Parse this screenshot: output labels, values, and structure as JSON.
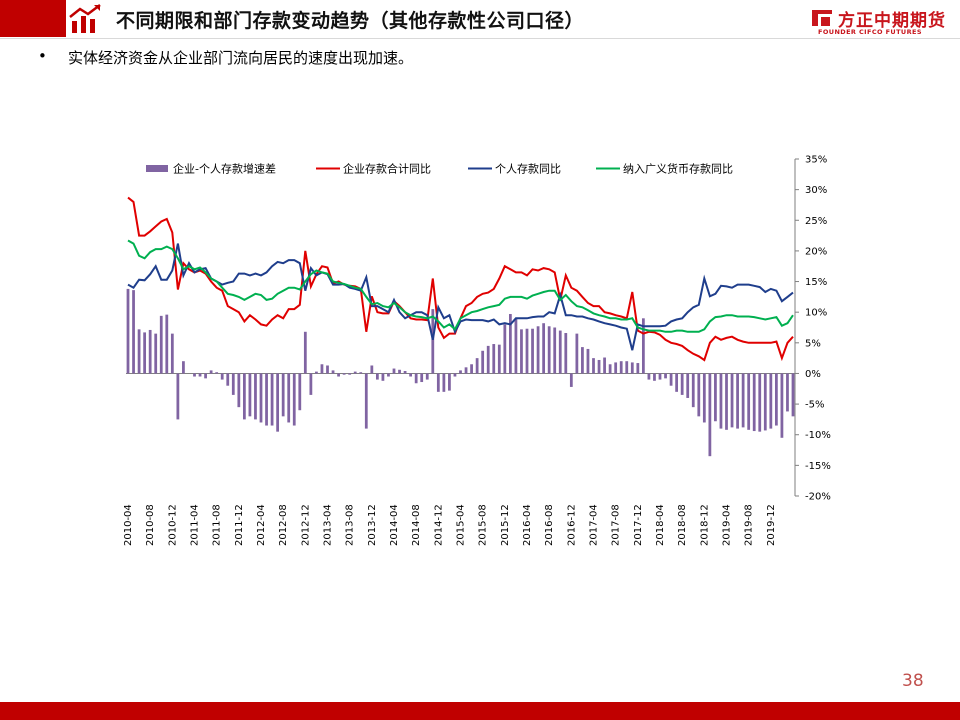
{
  "header": {
    "title": "不同期限和部门存款变动趋势（其他存款性公司口径）",
    "logo_cn": "方正中期期货",
    "logo_en": "FOUNDER CIFCO FUTURES"
  },
  "bullet": {
    "marker": "•",
    "text": "实体经济资金从企业部门流向居民的速度出现加速。"
  },
  "page_number": "38",
  "colors": {
    "accent_red": "#c00000",
    "bar": "#8064a2",
    "corp": "#e00000",
    "personal": "#1f3e8c",
    "m2": "#00b050"
  },
  "chart_data": {
    "type": "bar+line",
    "title": "",
    "xlabel": "",
    "ylabel": "",
    "ylim": [
      -0.2,
      0.35
    ],
    "y_ticks": [
      "35%",
      "30%",
      "25%",
      "20%",
      "15%",
      "10%",
      "5%",
      "0%",
      "-5%",
      "-10%",
      "-15%",
      "-20%"
    ],
    "x_labels": [
      "2010-04",
      "2010-08",
      "2010-12",
      "2011-04",
      "2011-08",
      "2011-12",
      "2012-04",
      "2012-08",
      "2012-12",
      "2013-04",
      "2013-08",
      "2013-12",
      "2014-04",
      "2014-08",
      "2014-12",
      "2015-04",
      "2015-08",
      "2015-12",
      "2016-04",
      "2016-08",
      "2016-12",
      "2017-04",
      "2017-08",
      "2017-12",
      "2018-04",
      "2018-08",
      "2018-12",
      "2019-04",
      "2019-08",
      "2019-12"
    ],
    "legend_position": "top",
    "gridlines": false,
    "series": [
      {
        "name": "企业-个人存款增速差",
        "type": "bar",
        "values": [
          0.138,
          0.136,
          0.072,
          0.067,
          0.071,
          0.065,
          0.094,
          0.096,
          0.065,
          -0.075,
          0.02,
          0.0,
          -0.005,
          -0.005,
          -0.008,
          0.005,
          0.002,
          -0.01,
          -0.02,
          -0.035,
          -0.055,
          -0.075,
          -0.07,
          -0.075,
          -0.08,
          -0.085,
          -0.085,
          -0.095,
          -0.07,
          -0.08,
          -0.085,
          -0.06,
          0.068,
          -0.035,
          0.003,
          0.015,
          0.013,
          0.005,
          -0.005,
          -0.002,
          -0.002,
          0.003,
          0.002,
          -0.09,
          0.013,
          -0.01,
          -0.012,
          -0.005,
          0.008,
          0.006,
          0.004,
          -0.005,
          -0.016,
          -0.014,
          -0.01,
          0.105,
          -0.03,
          -0.03,
          -0.028,
          -0.005,
          0.005,
          0.01,
          0.015,
          0.025,
          0.037,
          0.045,
          0.048,
          0.047,
          0.08,
          0.097,
          0.09,
          0.072,
          0.073,
          0.073,
          0.077,
          0.082,
          0.077,
          0.075,
          0.07,
          0.066,
          -0.022,
          0.065,
          0.043,
          0.04,
          0.025,
          0.022,
          0.026,
          0.015,
          0.018,
          0.02,
          0.02,
          0.018,
          0.017,
          0.09,
          -0.01,
          -0.012,
          -0.01,
          -0.008,
          -0.02,
          -0.03,
          -0.035,
          -0.04,
          -0.055,
          -0.07,
          -0.08,
          -0.135,
          -0.078,
          -0.09,
          -0.092,
          -0.088,
          -0.09,
          -0.088,
          -0.092,
          -0.094,
          -0.095,
          -0.093,
          -0.09,
          -0.085,
          -0.105,
          -0.062,
          -0.07
        ]
      },
      {
        "name": "企业存款合计同比",
        "type": "line",
        "values": [
          0.287,
          0.28,
          0.225,
          0.225,
          0.232,
          0.24,
          0.248,
          0.252,
          0.23,
          0.137,
          0.18,
          0.17,
          0.165,
          0.168,
          0.163,
          0.15,
          0.14,
          0.135,
          0.11,
          0.105,
          0.1,
          0.085,
          0.095,
          0.088,
          0.08,
          0.078,
          0.088,
          0.095,
          0.09,
          0.105,
          0.105,
          0.112,
          0.2,
          0.142,
          0.162,
          0.175,
          0.173,
          0.147,
          0.15,
          0.145,
          0.143,
          0.142,
          0.138,
          0.068,
          0.126,
          0.1,
          0.098,
          0.098,
          0.118,
          0.11,
          0.1,
          0.09,
          0.088,
          0.088,
          0.087,
          0.155,
          0.075,
          0.058,
          0.065,
          0.065,
          0.09,
          0.11,
          0.115,
          0.125,
          0.13,
          0.132,
          0.138,
          0.155,
          0.175,
          0.17,
          0.165,
          0.165,
          0.16,
          0.17,
          0.168,
          0.172,
          0.17,
          0.165,
          0.12,
          0.16,
          0.14,
          0.135,
          0.125,
          0.115,
          0.11,
          0.11,
          0.1,
          0.098,
          0.095,
          0.093,
          0.09,
          0.133,
          0.07,
          0.065,
          0.068,
          0.067,
          0.063,
          0.055,
          0.05,
          0.048,
          0.045,
          0.038,
          0.032,
          0.028,
          0.022,
          0.05,
          0.06,
          0.055,
          0.058,
          0.06,
          0.055,
          0.052,
          0.05,
          0.05,
          0.05,
          0.05,
          0.05,
          0.052,
          0.025,
          0.05,
          0.06
        ]
      },
      {
        "name": "个人存款同比",
        "type": "line",
        "values": [
          0.145,
          0.14,
          0.153,
          0.152,
          0.162,
          0.175,
          0.153,
          0.153,
          0.168,
          0.212,
          0.16,
          0.18,
          0.165,
          0.17,
          0.172,
          0.155,
          0.15,
          0.145,
          0.148,
          0.15,
          0.163,
          0.163,
          0.16,
          0.163,
          0.16,
          0.165,
          0.175,
          0.182,
          0.18,
          0.185,
          0.185,
          0.18,
          0.135,
          0.172,
          0.16,
          0.165,
          0.162,
          0.145,
          0.145,
          0.146,
          0.14,
          0.138,
          0.135,
          0.157,
          0.11,
          0.11,
          0.105,
          0.1,
          0.12,
          0.1,
          0.09,
          0.095,
          0.1,
          0.1,
          0.095,
          0.055,
          0.108,
          0.09,
          0.095,
          0.068,
          0.085,
          0.088,
          0.087,
          0.087,
          0.087,
          0.085,
          0.088,
          0.08,
          0.082,
          0.08,
          0.09,
          0.09,
          0.09,
          0.092,
          0.093,
          0.093,
          0.1,
          0.098,
          0.128,
          0.095,
          0.095,
          0.093,
          0.093,
          0.09,
          0.088,
          0.085,
          0.082,
          0.08,
          0.078,
          0.075,
          0.073,
          0.038,
          0.08,
          0.077,
          0.077,
          0.077,
          0.077,
          0.078,
          0.085,
          0.088,
          0.09,
          0.1,
          0.108,
          0.112,
          0.155,
          0.126,
          0.13,
          0.143,
          0.142,
          0.14,
          0.145,
          0.145,
          0.145,
          0.143,
          0.141,
          0.133,
          0.138,
          0.135,
          0.118,
          0.125,
          0.132
        ]
      },
      {
        "name": "纳入广义货币存款同比",
        "type": "line",
        "values": [
          0.217,
          0.212,
          0.192,
          0.188,
          0.198,
          0.203,
          0.203,
          0.207,
          0.203,
          0.188,
          0.17,
          0.175,
          0.17,
          0.173,
          0.165,
          0.155,
          0.15,
          0.14,
          0.13,
          0.128,
          0.125,
          0.12,
          0.125,
          0.13,
          0.128,
          0.12,
          0.122,
          0.13,
          0.135,
          0.14,
          0.14,
          0.137,
          0.15,
          0.162,
          0.168,
          0.165,
          0.163,
          0.15,
          0.148,
          0.146,
          0.143,
          0.14,
          0.138,
          0.125,
          0.113,
          0.115,
          0.11,
          0.108,
          0.115,
          0.108,
          0.1,
          0.095,
          0.093,
          0.092,
          0.09,
          0.093,
          0.085,
          0.075,
          0.08,
          0.072,
          0.09,
          0.095,
          0.1,
          0.102,
          0.105,
          0.108,
          0.11,
          0.112,
          0.122,
          0.125,
          0.125,
          0.125,
          0.122,
          0.127,
          0.13,
          0.133,
          0.135,
          0.135,
          0.12,
          0.128,
          0.118,
          0.11,
          0.108,
          0.103,
          0.098,
          0.095,
          0.093,
          0.09,
          0.09,
          0.088,
          0.088,
          0.09,
          0.075,
          0.072,
          0.07,
          0.07,
          0.07,
          0.068,
          0.068,
          0.07,
          0.07,
          0.068,
          0.068,
          0.068,
          0.072,
          0.085,
          0.092,
          0.093,
          0.095,
          0.095,
          0.093,
          0.093,
          0.093,
          0.092,
          0.09,
          0.088,
          0.09,
          0.092,
          0.078,
          0.082,
          0.095
        ]
      }
    ]
  }
}
